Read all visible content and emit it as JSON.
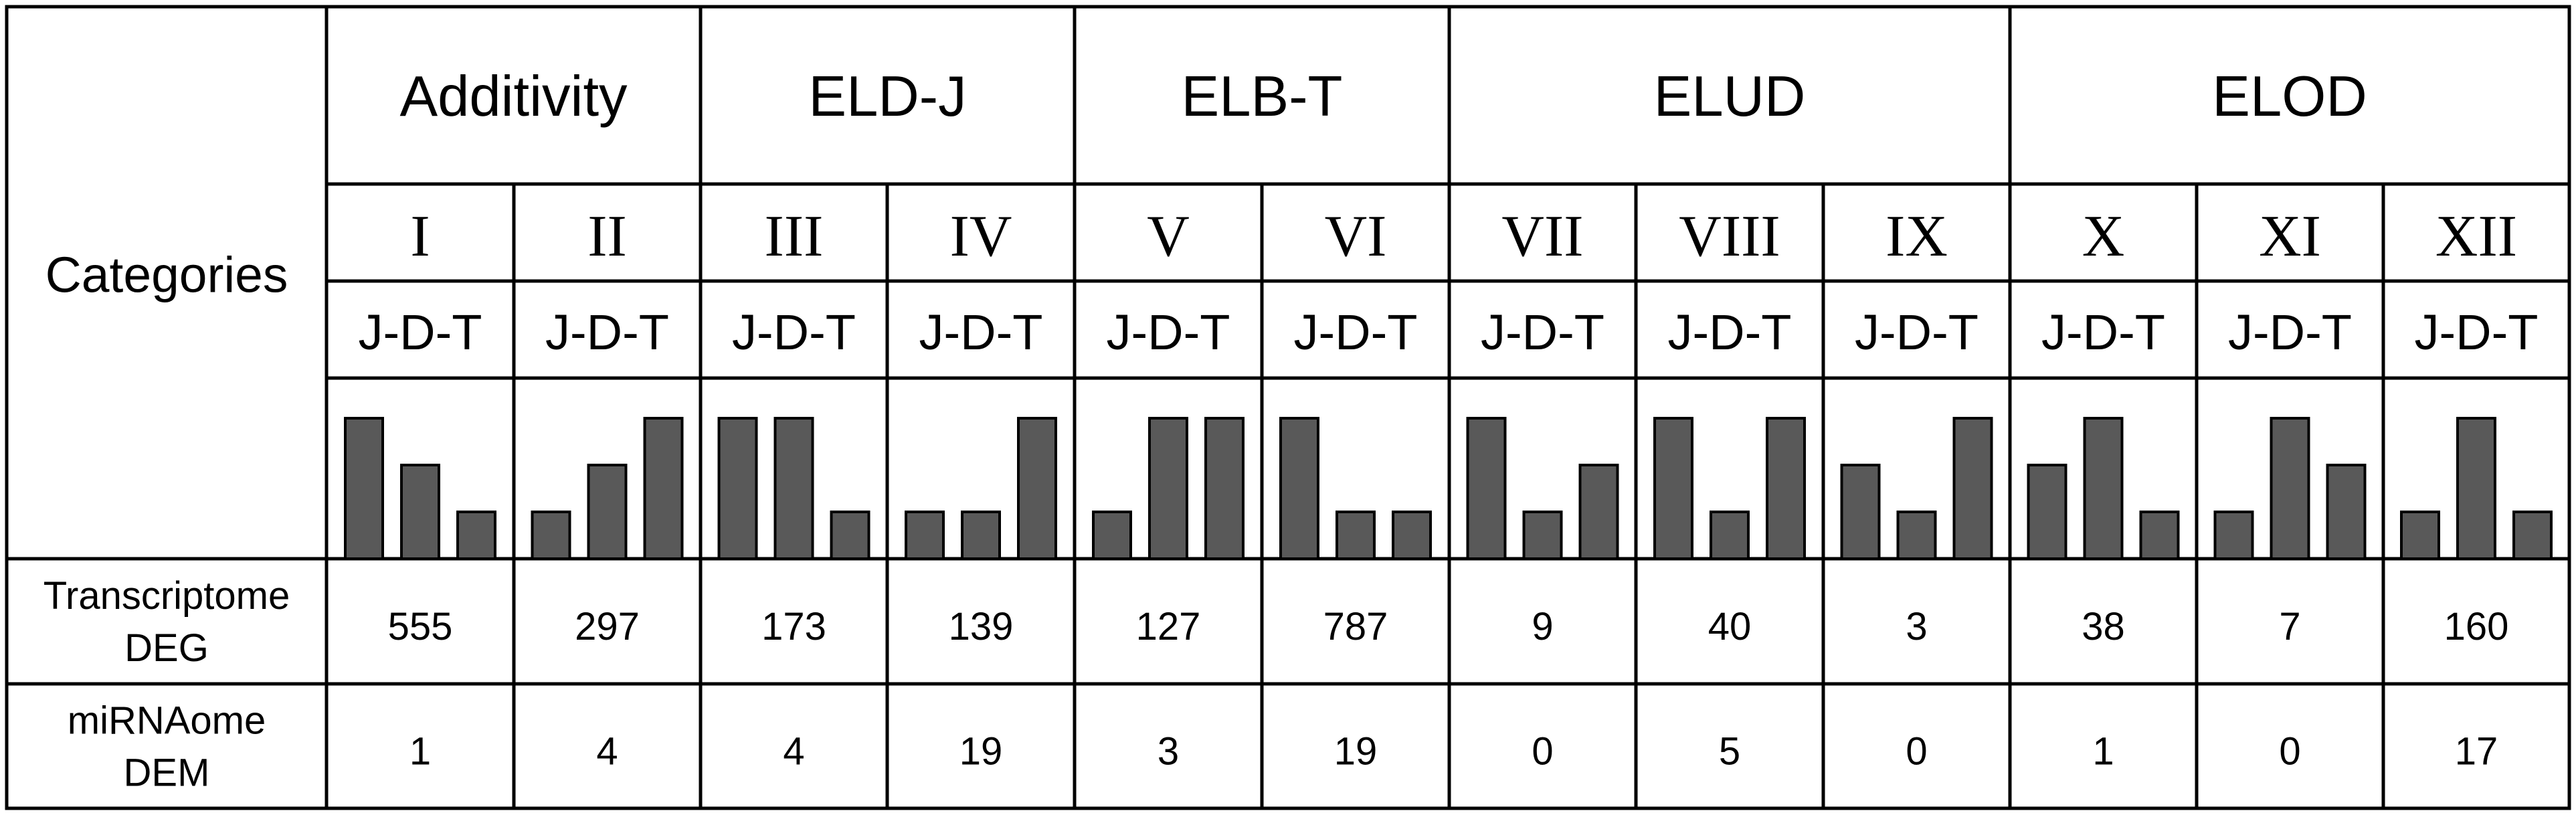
{
  "table": {
    "categories_label": "Categories",
    "row_labels": [
      {
        "line1": "Transcriptome",
        "line2": "DEG"
      },
      {
        "line1": "miRNAome",
        "line2": "DEM"
      }
    ],
    "groups": [
      {
        "name": "Additivity",
        "span": 2
      },
      {
        "name": "ELD-J",
        "span": 2
      },
      {
        "name": "ELB-T",
        "span": 2
      },
      {
        "name": "ELUD",
        "span": 3
      },
      {
        "name": "ELOD",
        "span": 3
      }
    ],
    "patterns": [
      {
        "numeral": "I",
        "order": "J-D-T",
        "levels": [
          3,
          2,
          1
        ],
        "deg": "555",
        "dem": "1"
      },
      {
        "numeral": "II",
        "order": "J-D-T",
        "levels": [
          1,
          2,
          3
        ],
        "deg": "297",
        "dem": "4"
      },
      {
        "numeral": "III",
        "order": "J-D-T",
        "levels": [
          3,
          3,
          1
        ],
        "deg": "173",
        "dem": "4"
      },
      {
        "numeral": "IV",
        "order": "J-D-T",
        "levels": [
          1,
          1,
          3
        ],
        "deg": "139",
        "dem": "19"
      },
      {
        "numeral": "V",
        "order": "J-D-T",
        "levels": [
          1,
          3,
          3
        ],
        "deg": "127",
        "dem": "3"
      },
      {
        "numeral": "VI",
        "order": "J-D-T",
        "levels": [
          3,
          1,
          1
        ],
        "deg": "787",
        "dem": "19"
      },
      {
        "numeral": "VII",
        "order": "J-D-T",
        "levels": [
          3,
          1,
          2
        ],
        "deg": "9",
        "dem": "0"
      },
      {
        "numeral": "VIII",
        "order": "J-D-T",
        "levels": [
          3,
          1,
          3
        ],
        "deg": "40",
        "dem": "5"
      },
      {
        "numeral": "IX",
        "order": "J-D-T",
        "levels": [
          2,
          1,
          3
        ],
        "deg": "3",
        "dem": "0"
      },
      {
        "numeral": "X",
        "order": "J-D-T",
        "levels": [
          2,
          3,
          1
        ],
        "deg": "38",
        "dem": "1"
      },
      {
        "numeral": "XI",
        "order": "J-D-T",
        "levels": [
          1,
          3,
          2
        ],
        "deg": "7",
        "dem": "0"
      },
      {
        "numeral": "XII",
        "order": "J-D-T",
        "levels": [
          1,
          3,
          1
        ],
        "deg": "160",
        "dem": "17"
      }
    ]
  },
  "colors": {
    "bar_fill": "#595959",
    "line": "#000000",
    "background": "#ffffff"
  }
}
